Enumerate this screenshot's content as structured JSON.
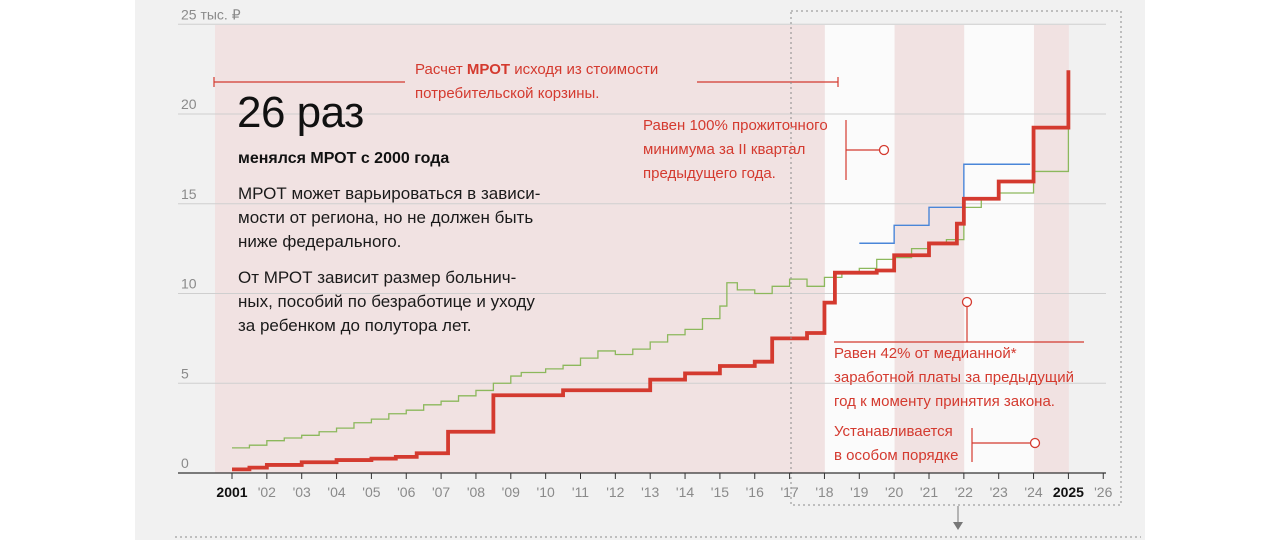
{
  "headline": {
    "big_number": "26 раз",
    "subtitle": "менялся МРОТ с 2000 года",
    "paragraph1": [
      "МРОТ может варьироваться в зависи-",
      "мости от региона, но не должен быть",
      "ниже федерального."
    ],
    "paragraph2": [
      "От МРОТ зависит размер больнич-",
      "ных, пособий по безработице и уходу",
      "за ребенком до полутора лет."
    ]
  },
  "annotations": {
    "basket": {
      "line1_pre": "Расчет ",
      "line1_bold": "МРОТ",
      "line1_post": " исходя из стоимости",
      "line2": "потребительской корзины."
    },
    "subsistence": [
      "Равен 100% прожиточного",
      "минимума за II квартал",
      "предыдущего года."
    ],
    "median": [
      "Равен 42% от медианной*",
      "заработной платы за предыдущий",
      "год к моменту принятия закона."
    ],
    "special": [
      "Устанавливается",
      "в особом порядке"
    ]
  },
  "colors": {
    "mrot": "#d43a2f",
    "basket_line": "#8cb85c",
    "subsistence_line": "#4a86d8",
    "band": "#f1e2e2",
    "band_light": "#fbfbfb",
    "grid": "#cfcfcf",
    "axis_text": "#8a8a8a"
  },
  "chart_data": {
    "type": "line",
    "y_unit_label": "25 тыс. ₽",
    "yticks": [
      0,
      5,
      10,
      15,
      20
    ],
    "ylim": [
      0,
      25
    ],
    "xlim": [
      2000.5,
      2026.3
    ],
    "x_tick_labels": [
      "2001",
      "'02",
      "'03",
      "'04",
      "'05",
      "'06",
      "'07",
      "'08",
      "'09",
      "'10",
      "'11",
      "'12",
      "'13",
      "'14",
      "'15",
      "'16",
      "'17",
      "'18",
      "'19",
      "'20",
      "'21",
      "'22",
      "'23",
      "'24",
      "2025",
      "'26"
    ],
    "x_tick_values": [
      2001,
      2002,
      2003,
      2004,
      2005,
      2006,
      2007,
      2008,
      2009,
      2010,
      2011,
      2012,
      2013,
      2014,
      2015,
      2016,
      2017,
      2018,
      2019,
      2020,
      2021,
      2022,
      2023,
      2024,
      2025,
      2026
    ],
    "x_tick_bold": [
      "2001",
      "2025"
    ],
    "shaded_periods": [
      {
        "from": 2001,
        "to": 2018.5,
        "shade": "band"
      },
      {
        "from": 2018.5,
        "to": 2020.5,
        "shade": "light"
      },
      {
        "from": 2020.5,
        "to": 2022.5,
        "shade": "band"
      },
      {
        "from": 2022.5,
        "to": 2024.5,
        "shade": "light"
      },
      {
        "from": 2024.5,
        "to": 2025.5,
        "shade": "band"
      }
    ],
    "series": [
      {
        "key": "mrot",
        "points": [
          [
            2001,
            0.2
          ],
          [
            2001.5,
            0.3
          ],
          [
            2002,
            0.45
          ],
          [
            2003,
            0.6
          ],
          [
            2004,
            0.72
          ],
          [
            2005,
            0.8
          ],
          [
            2005.7,
            0.9
          ],
          [
            2006.3,
            1.1
          ],
          [
            2007.2,
            2.3
          ],
          [
            2007.8,
            2.3
          ],
          [
            2008.5,
            4.33
          ],
          [
            2010,
            4.33
          ],
          [
            2010.5,
            4.61
          ],
          [
            2012.5,
            4.61
          ],
          [
            2013,
            5.2
          ],
          [
            2014,
            5.55
          ],
          [
            2015,
            5.96
          ],
          [
            2016,
            6.2
          ],
          [
            2016.5,
            7.5
          ],
          [
            2017.5,
            7.8
          ],
          [
            2018,
            9.49
          ],
          [
            2018.3,
            11.16
          ],
          [
            2019.5,
            11.28
          ],
          [
            2020,
            12.13
          ],
          [
            2021,
            12.79
          ],
          [
            2021.8,
            13.89
          ],
          [
            2022,
            15.28
          ],
          [
            2023,
            16.24
          ],
          [
            2024,
            19.24
          ],
          [
            2025,
            22.44
          ]
        ]
      },
      {
        "key": "basket_line",
        "points": [
          [
            2001,
            1.4
          ],
          [
            2001.5,
            1.55
          ],
          [
            2002,
            1.8
          ],
          [
            2002.5,
            1.95
          ],
          [
            2003,
            2.1
          ],
          [
            2003.5,
            2.3
          ],
          [
            2004,
            2.5
          ],
          [
            2004.5,
            2.8
          ],
          [
            2005,
            3.0
          ],
          [
            2005.5,
            3.3
          ],
          [
            2006,
            3.5
          ],
          [
            2006.5,
            3.8
          ],
          [
            2007,
            4.0
          ],
          [
            2007.5,
            4.3
          ],
          [
            2008,
            4.6
          ],
          [
            2008.5,
            5.0
          ],
          [
            2009,
            5.4
          ],
          [
            2009.3,
            5.6
          ],
          [
            2010,
            5.8
          ],
          [
            2010.5,
            6.0
          ],
          [
            2011,
            6.4
          ],
          [
            2011.5,
            6.8
          ],
          [
            2012,
            6.6
          ],
          [
            2012.5,
            6.9
          ],
          [
            2013,
            7.3
          ],
          [
            2013.5,
            7.7
          ],
          [
            2014,
            8.0
          ],
          [
            2014.5,
            8.6
          ],
          [
            2015,
            9.3
          ],
          [
            2015.2,
            10.6
          ],
          [
            2015.5,
            10.2
          ],
          [
            2016,
            10.0
          ],
          [
            2016.5,
            10.4
          ],
          [
            2017,
            10.8
          ],
          [
            2017.5,
            10.4
          ],
          [
            2018,
            10.9
          ],
          [
            2018.5,
            11.1
          ],
          [
            2019,
            11.4
          ],
          [
            2019.5,
            11.9
          ],
          [
            2020,
            12.0
          ],
          [
            2020.5,
            12.5
          ],
          [
            2021,
            12.8
          ],
          [
            2021.5,
            13.0
          ],
          [
            2022,
            14.8
          ],
          [
            2022.5,
            15.3
          ],
          [
            2023,
            15.6
          ],
          [
            2024,
            16.8
          ],
          [
            2025,
            19.3
          ]
        ]
      },
      {
        "key": "subsistence_line",
        "points": [
          [
            2019,
            12.8
          ],
          [
            2020,
            13.8
          ],
          [
            2021,
            14.8
          ],
          [
            2022,
            17.2
          ],
          [
            2022.5,
            17.2
          ],
          [
            2023.9,
            17.2
          ]
        ]
      }
    ]
  }
}
